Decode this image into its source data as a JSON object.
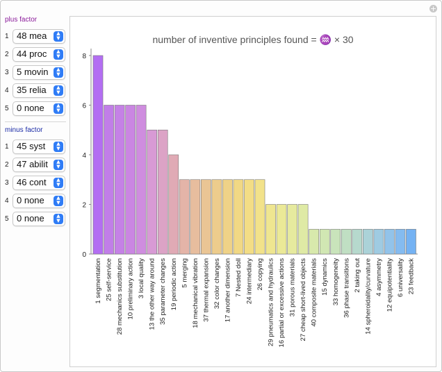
{
  "controls": {
    "plus_title": "plus factor",
    "minus_title": "minus factor",
    "plus": [
      {
        "index": "1",
        "value": "48 mea"
      },
      {
        "index": "2",
        "value": "44 proc"
      },
      {
        "index": "3",
        "value": "5 movin"
      },
      {
        "index": "4",
        "value": "35 relia"
      },
      {
        "index": "5",
        "value": "0 none"
      }
    ],
    "minus": [
      {
        "index": "1",
        "value": "45 syst"
      },
      {
        "index": "2",
        "value": "47 abilit"
      },
      {
        "index": "3",
        "value": "46 cont"
      },
      {
        "index": "4",
        "value": "0 none"
      },
      {
        "index": "5",
        "value": "0 none"
      }
    ]
  },
  "chart_data": {
    "type": "bar",
    "title": "number of inventive principles found = ♒ × 30",
    "ylim": [
      0,
      8
    ],
    "yticks": [
      0,
      2,
      4,
      6,
      8
    ],
    "categories": [
      "1 segmentation",
      "25 self-service",
      "28 mechanics substitution",
      "10 preliminary action",
      "3 local quality",
      "13 the other way around",
      "35 parameter changes",
      "19 periodic action",
      "5 merging",
      "18 mechanical vibration",
      "37 thermal expansion",
      "32 color changes",
      "17 another dimension",
      "7 Nested doll",
      "24 intermediary",
      "26 copying",
      "29 pneumatics and hydraulics",
      "16 partial or excessive actions",
      "31 porous materials",
      "27 cheap short-lived objects",
      "40 composite materials",
      "15 dynamics",
      "33 homogeneity",
      "36 phase transitions",
      "2 taking out",
      "14 spheroidality/curvature",
      "4 asymmetry",
      "12 equipotentiality",
      "6 universality",
      "23 feedback"
    ],
    "values": [
      8,
      6,
      6,
      6,
      6,
      5,
      5,
      4,
      3,
      3,
      3,
      3,
      3,
      3,
      3,
      3,
      2,
      2,
      2,
      2,
      1,
      1,
      1,
      1,
      1,
      1,
      1,
      1,
      1,
      1
    ],
    "colors": [
      "#b36ef2",
      "#c17ee8",
      "#c581e6",
      "#ca86e2",
      "#cf8ddf",
      "#d89ad5",
      "#dca3c6",
      "#e0aab5",
      "#e4b4a8",
      "#e7bd9e",
      "#eac594",
      "#edcc8c",
      "#efd287",
      "#f1d884",
      "#f3dd85",
      "#f2e28a",
      "#efe690",
      "#ebe997",
      "#e6ea9e",
      "#dfeaa5",
      "#d8e9ac",
      "#d1e7b3",
      "#c9e4bb",
      "#c0dfc3",
      "#b6d9cd",
      "#abd2d8",
      "#9fcbe2",
      "#92c3ea",
      "#84bbf0",
      "#74b2f3"
    ]
  }
}
